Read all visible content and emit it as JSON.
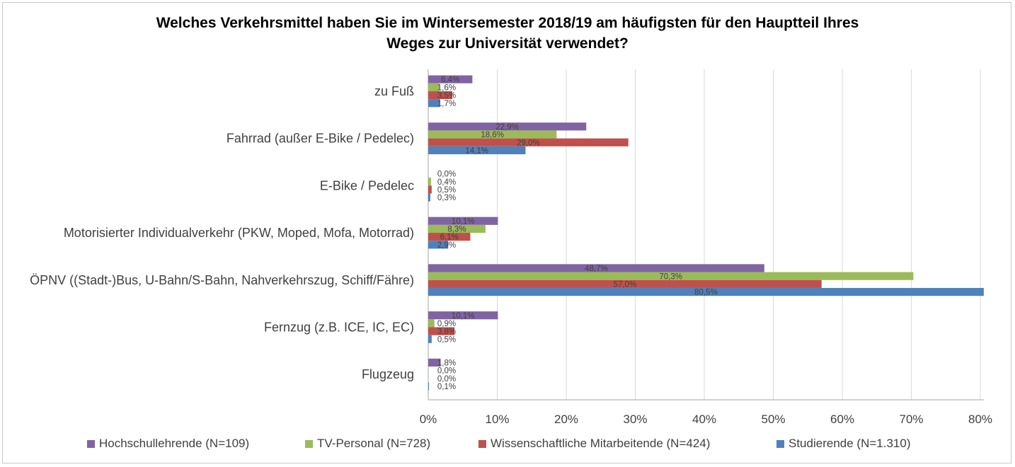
{
  "chart_data": {
    "type": "bar",
    "orientation": "horizontal",
    "title": "Welches Verkehrsmittel haben Sie im Wintersemester 2018/19 am häufigsten für den Hauptteil Ihres Weges zur Universität verwendet?",
    "title_lines": [
      "Welches Verkehrsmittel haben Sie im Wintersemester 2018/19 am häufigsten für den Hauptteil Ihres",
      "Weges zur Universität verwendet?"
    ],
    "categories": [
      "zu Fuß",
      "Fahrrad (außer E-Bike / Pedelec)",
      "E-Bike / Pedelec",
      "Motorisierter Individualverkehr (PKW, Moped, Mofa, Motorrad)",
      "ÖPNV ((Stadt-)Bus, U-Bahn/S-Bahn, Nahverkehrszug, Schiff/Fähre)",
      "Fernzug (z.B. ICE, IC, EC)",
      "Flugzeug"
    ],
    "series": [
      {
        "name": "Hochschullehrende (N=109)",
        "color": "#8064a2",
        "values": [
          6.4,
          22.9,
          0.0,
          10.1,
          48.7,
          10.1,
          1.8
        ],
        "labels": [
          "6,4%",
          "22,9%",
          "0,0%",
          "10,1%",
          "48,7%",
          "10,1%",
          "1,8%"
        ]
      },
      {
        "name": "TV-Personal (N=728)",
        "color": "#9bbb59",
        "values": [
          1.6,
          18.6,
          0.4,
          8.3,
          70.3,
          0.9,
          0.0
        ],
        "labels": [
          "1,6%",
          "18,6%",
          "0,4%",
          "8,3%",
          "70,3%",
          "0,9%",
          "0,0%"
        ]
      },
      {
        "name": "Wissenschaftliche Mitarbeitende (N=424)",
        "color": "#c0504d",
        "values": [
          3.5,
          29.0,
          0.5,
          6.1,
          57.0,
          3.8,
          0.0
        ],
        "labels": [
          "3,5%",
          "29,0%",
          "0,5%",
          "6,1%",
          "57,0%",
          "3,8%",
          "0,0%"
        ]
      },
      {
        "name": "Studierende (N=1.310)",
        "color": "#4f81bd",
        "values": [
          1.7,
          14.1,
          0.3,
          2.9,
          80.5,
          0.5,
          0.1
        ],
        "labels": [
          "1,7%",
          "14,1%",
          "0,3%",
          "2,9%",
          "80,5%",
          "0,5%",
          "0,1%"
        ]
      }
    ],
    "xlim": [
      0,
      80
    ],
    "x_ticks": [
      "0%",
      "10%",
      "20%",
      "30%",
      "40%",
      "50%",
      "60%",
      "70%",
      "80%"
    ],
    "xlabel": "",
    "ylabel": "",
    "grid": true,
    "legend_position": "bottom"
  }
}
